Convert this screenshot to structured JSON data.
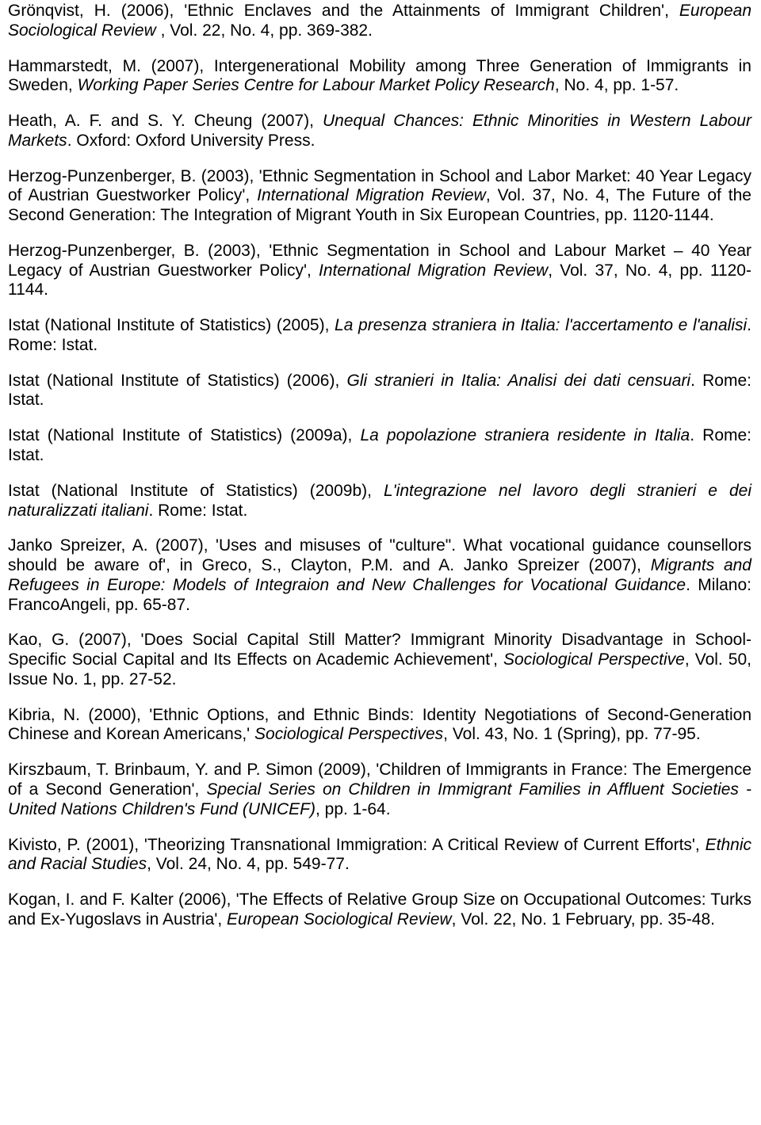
{
  "text_color": "#000000",
  "background_color": "#ffffff",
  "font_family": "Arial",
  "font_size_pt": 16,
  "refs": [
    "Grönqvist, H. (2006), 'Ethnic Enclaves and the Attainments of Immigrant Children', <i>European Sociological Review</i> , Vol. 22, No. 4, pp. 369-382.",
    "Hammarstedt, M. (2007), Intergenerational Mobility among Three Generation of Immigrants in Sweden, <i>Working Paper Series Centre for Labour Market Policy Research</i>, No. 4, pp. 1-57.",
    "Heath, A. F. and S. Y. Cheung (2007), <i>Unequal Chances: Ethnic Minorities in Western Labour Markets</i>. Oxford: Oxford University Press.",
    "Herzog-Punzenberger, B. (2003), 'Ethnic Segmentation in School and Labor Market: 40 Year Legacy of Austrian Guestworker Policy', <i>International Migration Review</i>, Vol. 37, No. 4, The Future of the Second Generation: The Integration of Migrant Youth in Six European Countries, pp. 1120-1144.",
    "Herzog-Punzenberger, B. (2003), 'Ethnic Segmentation in School and Labour Market – 40 Year Legacy of Austrian Guestworker Policy', <i>International Migration Review</i>, Vol. 37, No. 4, pp. 1120-1144.",
    "Istat (National Institute of Statistics) (2005), <i>La presenza straniera in Italia: l'accertamento e l'analisi</i>. Rome: Istat.",
    "Istat (National Institute of Statistics) (2006), <i>Gli stranieri in Italia: Analisi dei dati censuari</i>. Rome: Istat.",
    "Istat (National Institute of Statistics) (2009a), <i>La popolazione straniera residente in Italia</i>. Rome: Istat.",
    "Istat (National Institute of Statistics) (2009b), <i>L'integrazione nel lavoro degli stranieri e dei naturalizzati italiani</i>. Rome: Istat.",
    "Janko Spreizer, A. (2007), 'Uses and misuses of \"culture\". What vocational guidance counsellors should be aware of', in Greco, S., Clayton, P.M. and A. Janko Spreizer (2007), <i>Migrants and Refugees in Europe: Models of Integraion and New Challenges for Vocational Guidance</i>. Milano: FrancoAngeli, pp. 65-87.",
    "Kao, G. (2007), 'Does Social Capital Still Matter? Immigrant Minority Disadvantage in School-Specific Social Capital and Its Effects on Academic Achievement', <i>Sociological Perspective</i>, Vol. 50, Issue No. 1, pp. 27-52.",
    "Kibria, N. (2000), 'Ethnic Options, and Ethnic Binds: Identity Negotiations of Second-Generation Chinese and Korean Americans,' <i>Sociological Perspectives</i>, Vol. 43, No. 1 (Spring), pp. 77-95.",
    "Kirszbaum, T. Brinbaum, Y. and P. Simon (2009), 'Children of Immigrants in France: The Emergence of a Second Generation', <i>Special Series on Children in Immigrant Families in Affluent Societies - United Nations Children's Fund (UNICEF)</i>, pp. 1-64.",
    "Kivisto, P. (2001), 'Theorizing Transnational Immigration: A Critical Review of Current Efforts', <i>Ethnic and Racial Studies</i>, Vol. 24, No. 4, pp. 549-77.",
    "Kogan, I. and F. Kalter (2006), 'The Effects of Relative Group Size on Occupational Outcomes: Turks and Ex-Yugoslavs in Austria', <i>European Sociological Review</i>, Vol. 22, No. 1 February, pp. 35-48."
  ]
}
